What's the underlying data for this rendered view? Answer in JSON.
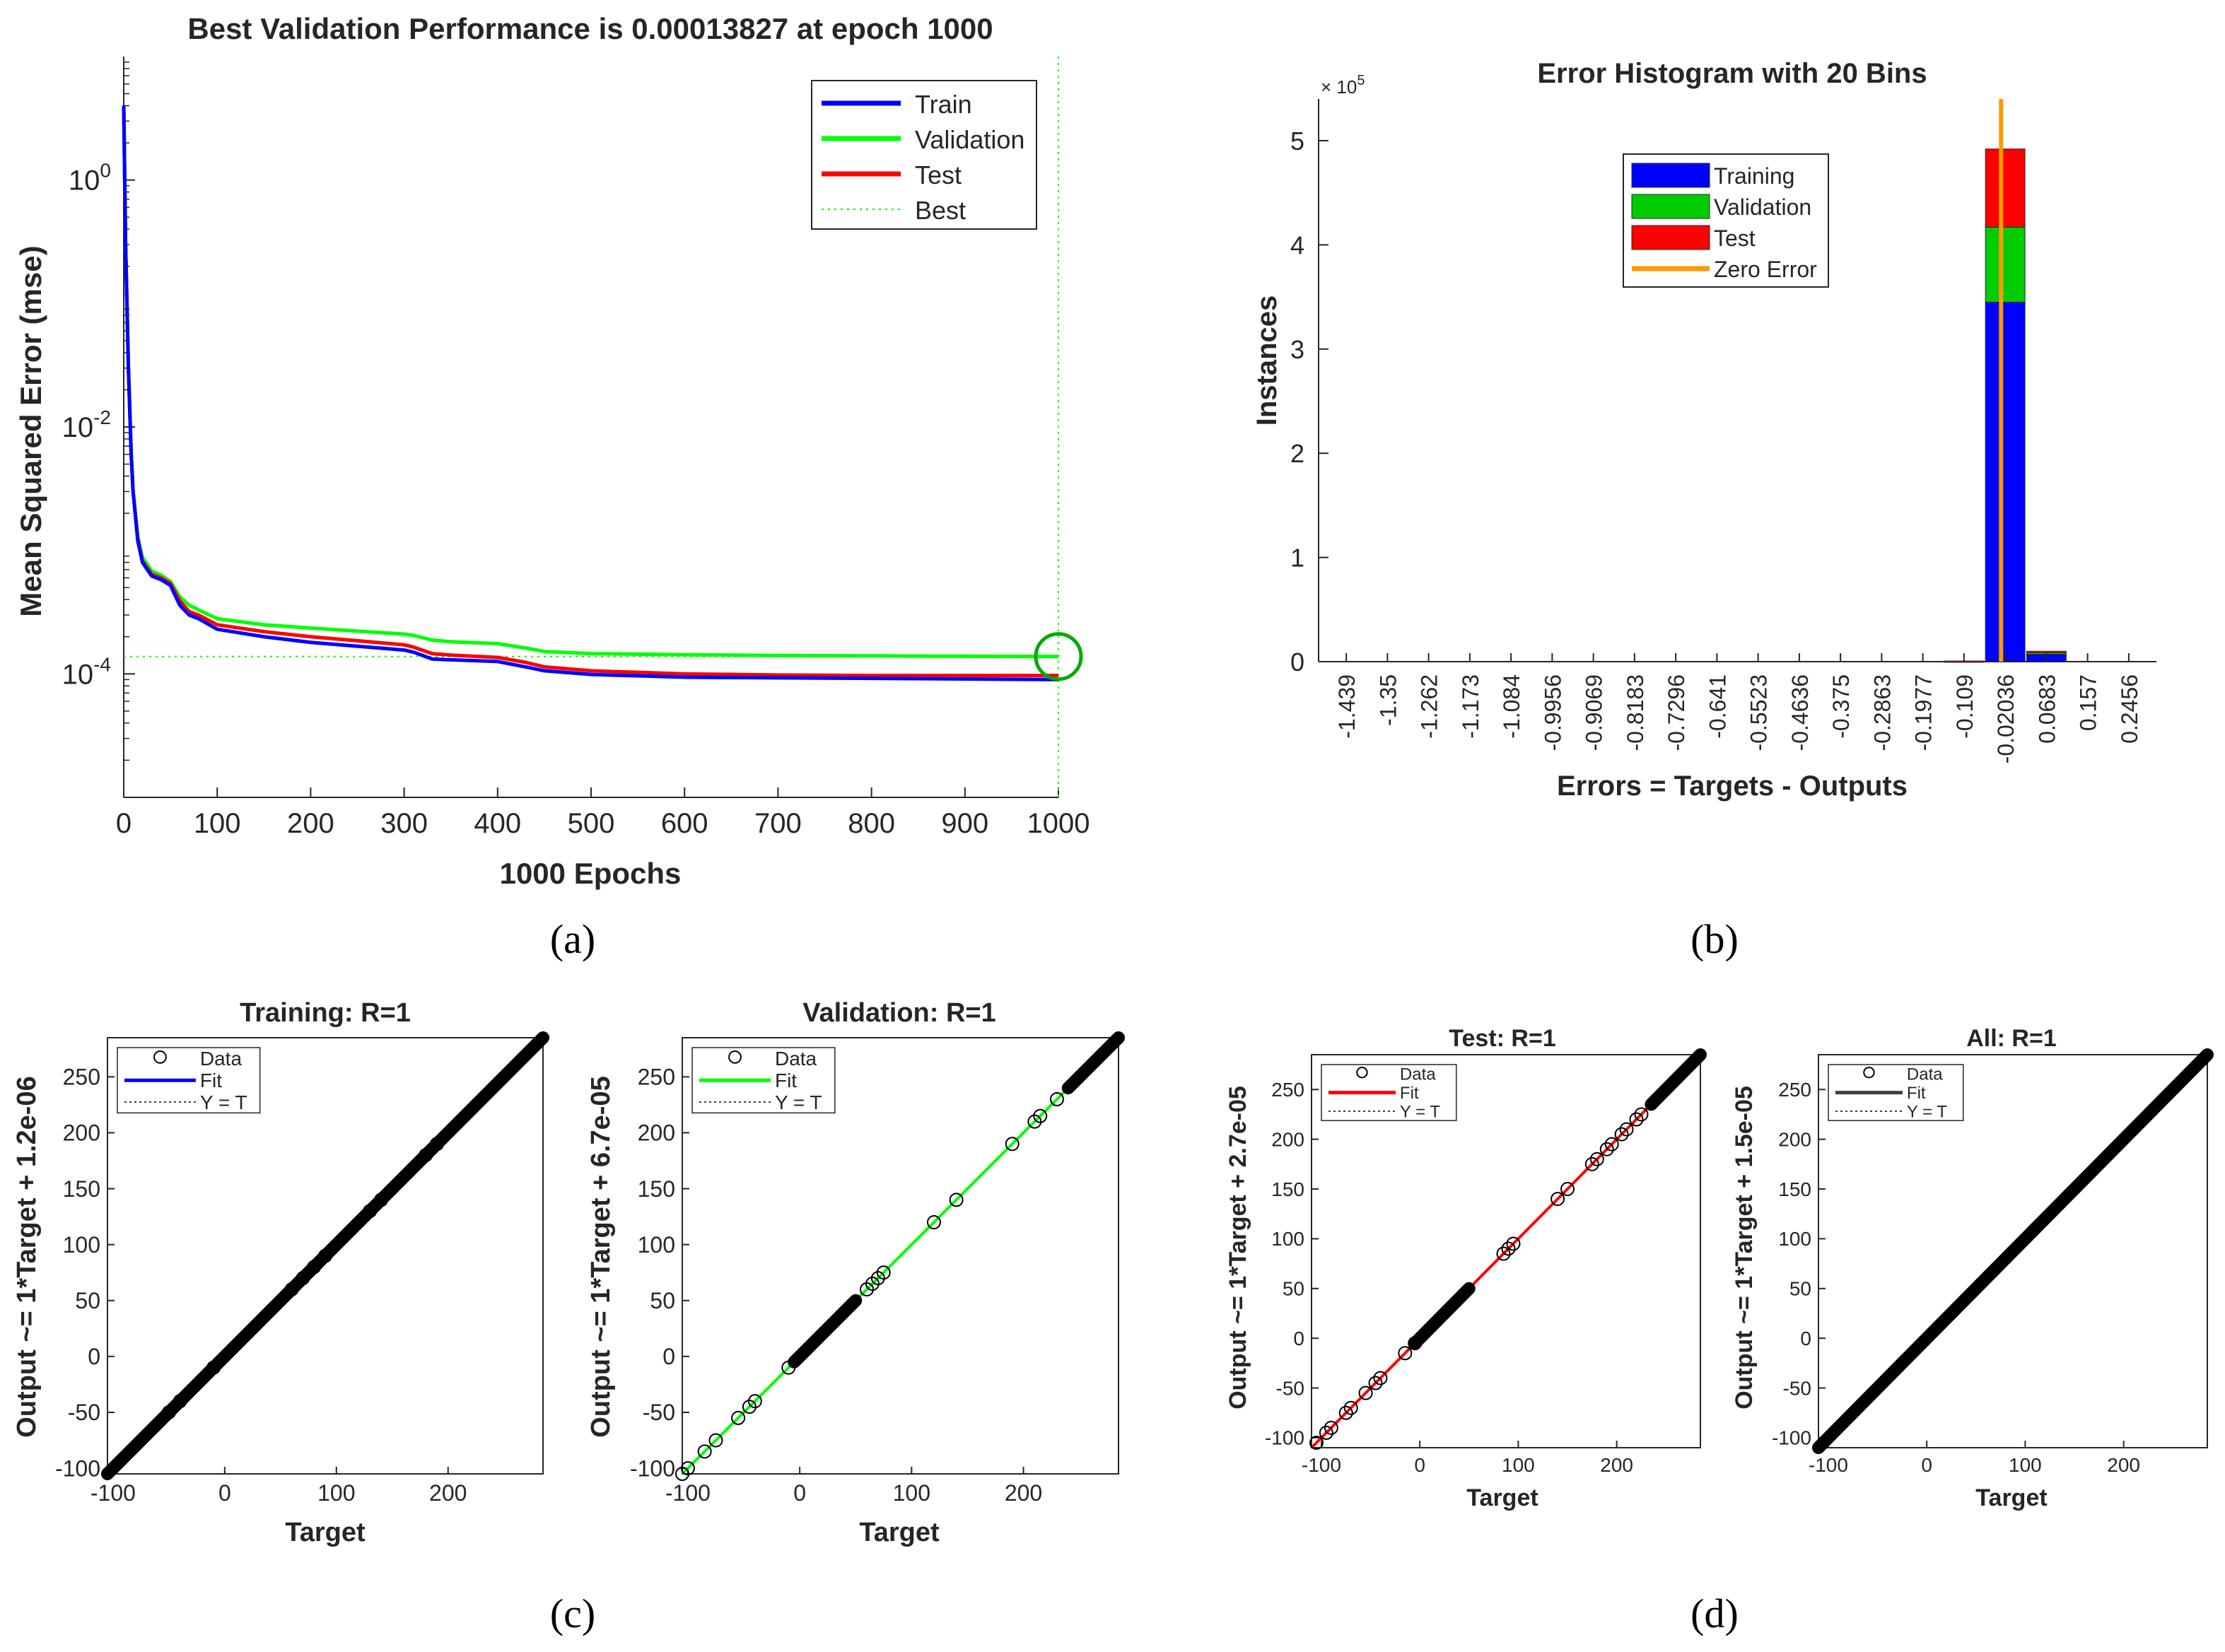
{
  "panel_labels": [
    "(a)",
    "(b)",
    "(c)",
    "(d)"
  ],
  "chart_data": [
    {
      "id": "a",
      "type": "line",
      "title": "Best Validation Performance is 0.00013827 at epoch 1000",
      "xlabel": "1000 Epochs",
      "ylabel": "Mean Squared Error  (mse)",
      "xlim": [
        0,
        1000
      ],
      "ylim": [
        1e-05,
        10
      ],
      "yscale": "log",
      "xticks": [
        0,
        100,
        200,
        300,
        400,
        500,
        600,
        700,
        800,
        900,
        1000
      ],
      "yticks": [
        {
          "value": 1,
          "label": "10",
          "exp": "0"
        },
        {
          "value": 0.01,
          "label": "10",
          "exp": "-2"
        },
        {
          "value": 0.0001,
          "label": "10",
          "exp": "-4"
        }
      ],
      "legend": {
        "position": "top-right",
        "entries": [
          "Train",
          "Validation",
          "Test",
          "Best"
        ]
      },
      "colors": {
        "Train": "#0000ff",
        "Validation": "#00ff00",
        "Test": "#ff0000",
        "Best": "#00ff00"
      },
      "epochs": [
        0,
        2,
        5,
        8,
        10,
        15,
        20,
        30,
        40,
        50,
        60,
        70,
        80,
        100,
        150,
        200,
        300,
        310,
        330,
        350,
        400,
        430,
        450,
        500,
        600,
        700,
        800,
        900,
        1000
      ],
      "series": [
        {
          "name": "Train",
          "values": [
            4,
            0.3,
            0.03,
            0.006,
            0.003,
            0.0012,
            0.0008,
            0.00062,
            0.00058,
            0.00052,
            0.00036,
            0.0003,
            0.00028,
            0.00023,
            0.0002,
            0.00018,
            0.000156,
            0.00015,
            0.000132,
            0.00013,
            0.000126,
            0.000114,
            0.000106,
            9.9e-05,
            9.4e-05,
            9.3e-05,
            9.2e-05,
            9.1e-05,
            9e-05
          ]
        },
        {
          "name": "Validation",
          "values": [
            4,
            0.3,
            0.03,
            0.006,
            0.003,
            0.0013,
            0.00088,
            0.00068,
            0.00063,
            0.00056,
            0.00042,
            0.00036,
            0.00033,
            0.00028,
            0.00025,
            0.000235,
            0.00021,
            0.000205,
            0.000188,
            0.000182,
            0.000176,
            0.000162,
            0.000152,
            0.000146,
            0.000143,
            0.000141,
            0.00014,
            0.000139,
            0.00013827
          ]
        },
        {
          "name": "Test",
          "values": [
            4,
            0.3,
            0.03,
            0.006,
            0.003,
            0.00125,
            0.00082,
            0.00064,
            0.0006,
            0.00054,
            0.00039,
            0.00032,
            0.0003,
            0.00025,
            0.00022,
            0.0002,
            0.000172,
            0.000165,
            0.000146,
            0.000142,
            0.000136,
            0.000124,
            0.000114,
            0.000106,
            0.0001,
            9.8e-05,
            9.7e-05,
            9.7e-05,
            9.7e-05
          ]
        }
      ],
      "best": {
        "epoch": 1000,
        "value": 0.00013827
      }
    },
    {
      "id": "b",
      "type": "bar",
      "title": "Error Histogram with 20 Bins",
      "xlabel": "Errors = Targets - Outputs",
      "ylabel": "Instances",
      "y_multiplier": "× 10",
      "y_multiplier_exp": "5",
      "ylim": [
        0,
        5.4
      ],
      "yticks": [
        0,
        1,
        2,
        3,
        4,
        5
      ],
      "categories": [
        "-1.439",
        "-1.35",
        "-1.262",
        "-1.173",
        "-1.084",
        "-0.9956",
        "-0.9069",
        "-0.8183",
        "-0.7296",
        "-0.641",
        "-0.5523",
        "-0.4636",
        "-0.375",
        "-0.2863",
        "-0.1977",
        "-0.109",
        "-0.02036",
        "0.0683",
        "0.157",
        "0.2456"
      ],
      "series": [
        {
          "name": "Training",
          "values": [
            0,
            0,
            0,
            0,
            0,
            0,
            0,
            0,
            0,
            0,
            0,
            0,
            0,
            0,
            0,
            0.004,
            3.45,
            0.07,
            0,
            0
          ]
        },
        {
          "name": "Validation",
          "values": [
            0,
            0,
            0,
            0,
            0,
            0,
            0,
            0,
            0,
            0,
            0,
            0,
            0,
            0,
            0,
            0.001,
            0.72,
            0.015,
            0,
            0
          ]
        },
        {
          "name": "Test",
          "values": [
            0,
            0,
            0,
            0,
            0,
            0,
            0,
            0,
            0,
            0,
            0,
            0,
            0,
            0,
            0,
            0.001,
            0.75,
            0.015,
            0,
            0
          ]
        }
      ],
      "zero_error_x": -0.02036,
      "legend": {
        "position": "top-center",
        "entries": [
          "Training",
          "Validation",
          "Test",
          "Zero Error"
        ]
      },
      "colors": {
        "Training": "#0000ff",
        "Validation": "#00cc00",
        "Test": "#ff0000",
        "Zero Error": "#ff9900"
      }
    },
    {
      "id": "c1",
      "type": "scatter",
      "title": "Training: R=1",
      "xlabel": "Target",
      "ylabel": "Output ~= 1*Target + 1.2e-06",
      "xlim": [
        -105,
        285
      ],
      "ylim": [
        -105,
        285
      ],
      "xticks": [
        -100,
        0,
        100,
        200
      ],
      "yticks": [
        -100,
        -50,
        0,
        50,
        100,
        150,
        200,
        250
      ],
      "fit_color": "#0000ff",
      "legend": {
        "position": "top-left",
        "entries": [
          "Data",
          "Fit",
          "Y = T"
        ]
      },
      "dense_ranges": [
        [
          -105,
          285
        ]
      ],
      "sparse_points": [
        -50,
        -40,
        -10,
        60,
        70,
        80,
        90,
        130,
        140,
        180,
        190
      ]
    },
    {
      "id": "c2",
      "type": "scatter",
      "title": "Validation: R=1",
      "xlabel": "Target",
      "ylabel": "Output ~= 1*Target + 6.7e-05",
      "xlim": [
        -105,
        285
      ],
      "ylim": [
        -105,
        285
      ],
      "xticks": [
        -100,
        0,
        100,
        200
      ],
      "yticks": [
        -100,
        -50,
        0,
        50,
        100,
        150,
        200,
        250
      ],
      "fit_color": "#00ff00",
      "legend": {
        "position": "top-left",
        "entries": [
          "Data",
          "Fit",
          "Y = T"
        ]
      },
      "dense_ranges": [
        [
          -5,
          50
        ],
        [
          240,
          285
        ]
      ],
      "sparse_points": [
        -105,
        -100,
        -85,
        -75,
        -55,
        -45,
        -40,
        -10,
        60,
        65,
        70,
        75,
        120,
        140,
        190,
        210,
        215,
        230
      ]
    },
    {
      "id": "d1",
      "type": "scatter",
      "title": "Test: R=1",
      "xlabel": "Target",
      "ylabel": "Output ~= 1*Target + 2.7e-05",
      "xlim": [
        -110,
        285
      ],
      "ylim": [
        -110,
        285
      ],
      "xticks": [
        -100,
        0,
        100,
        200
      ],
      "yticks": [
        -100,
        -50,
        0,
        50,
        100,
        150,
        200,
        250
      ],
      "fit_color": "#ff0000",
      "legend": {
        "position": "top-left",
        "entries": [
          "Data",
          "Fit",
          "Y = T"
        ]
      },
      "dense_ranges": [
        [
          -5,
          50
        ],
        [
          235,
          285
        ]
      ],
      "sparse_points": [
        -105,
        -95,
        -90,
        -75,
        -70,
        -55,
        -45,
        -40,
        -15,
        -5,
        85,
        90,
        95,
        140,
        150,
        175,
        180,
        190,
        195,
        205,
        210,
        220,
        225
      ]
    },
    {
      "id": "d2",
      "type": "scatter",
      "title": "All: R=1",
      "xlabel": "Target",
      "ylabel": "Output ~= 1*Target + 1.5e-05",
      "xlim": [
        -110,
        285
      ],
      "ylim": [
        -110,
        285
      ],
      "xticks": [
        -100,
        0,
        100,
        200
      ],
      "yticks": [
        -100,
        -50,
        0,
        50,
        100,
        150,
        200,
        250
      ],
      "fit_color": "#404040",
      "legend": {
        "position": "top-left",
        "entries": [
          "Data",
          "Fit",
          "Y = T"
        ]
      },
      "dense_ranges": [
        [
          -110,
          285
        ]
      ],
      "sparse_points": []
    }
  ]
}
